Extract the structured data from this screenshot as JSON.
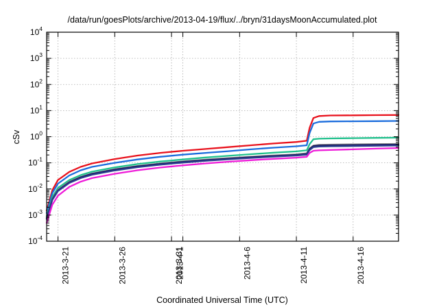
{
  "chart_data": {
    "type": "line",
    "title": "/data/run/goesPlots/archive/2013-04-19/flux/../bryn/31daysMoonAccumulated.plot",
    "xlabel": "Coordinated Universal Time (UTC)",
    "ylabel": "cSv",
    "xlim": [
      "2013-03-20",
      "2013-04-20"
    ],
    "ylim": [
      0.0001,
      10000
    ],
    "yscale": "log",
    "grid": true,
    "x_ticks": [
      "2013-3-21",
      "2013-3-26",
      "2013-3-31",
      "2013-4-1",
      "2013-4-6",
      "2013-4-11",
      "2013-4-16"
    ],
    "y_ticks": [
      {
        "value": 0.0001,
        "base": "10",
        "exp": "-4"
      },
      {
        "value": 0.001,
        "base": "10",
        "exp": "-3"
      },
      {
        "value": 0.01,
        "base": "10",
        "exp": "-2"
      },
      {
        "value": 0.1,
        "base": "10",
        "exp": "-1"
      },
      {
        "value": 1,
        "base": "10",
        "exp": "0"
      },
      {
        "value": 10,
        "base": "10",
        "exp": "1"
      },
      {
        "value": 100,
        "base": "10",
        "exp": "2"
      },
      {
        "value": 1000,
        "base": "10",
        "exp": "3"
      },
      {
        "value": 10000,
        "base": "10",
        "exp": "4"
      }
    ],
    "x": [
      "2013-03-20",
      "2013-03-20 12:00",
      "2013-03-21",
      "2013-03-22",
      "2013-03-23",
      "2013-03-24",
      "2013-03-26",
      "2013-03-28",
      "2013-03-30",
      "2013-04-01",
      "2013-04-03",
      "2013-04-05",
      "2013-04-07",
      "2013-04-09",
      "2013-04-11",
      "2013-04-11 22:00",
      "2013-04-12 04:00",
      "2013-04-12 12:00",
      "2013-04-13",
      "2013-04-14",
      "2013-04-16",
      "2013-04-18",
      "2013-04-20"
    ],
    "series": [
      {
        "color": "#e8111c",
        "values": [
          0.0015,
          0.009,
          0.022,
          0.045,
          0.07,
          0.095,
          0.14,
          0.19,
          0.24,
          0.29,
          0.34,
          0.4,
          0.47,
          0.55,
          0.63,
          0.7,
          2.2,
          5.2,
          6.2,
          6.5,
          6.6,
          6.7,
          6.8
        ]
      },
      {
        "color": "#1a6cdc",
        "values": [
          0.0012,
          0.007,
          0.016,
          0.033,
          0.052,
          0.07,
          0.1,
          0.135,
          0.17,
          0.205,
          0.24,
          0.28,
          0.33,
          0.38,
          0.43,
          0.47,
          1.4,
          3.2,
          3.7,
          3.85,
          3.9,
          3.95,
          4.0
        ]
      },
      {
        "color": "#1fc08c",
        "values": [
          0.0009,
          0.005,
          0.011,
          0.022,
          0.034,
          0.046,
          0.067,
          0.09,
          0.112,
          0.135,
          0.16,
          0.185,
          0.215,
          0.245,
          0.275,
          0.3,
          0.52,
          0.8,
          0.84,
          0.86,
          0.88,
          0.9,
          0.92
        ]
      },
      {
        "color": "#8a8a8a",
        "values": [
          0.0008,
          0.0042,
          0.0092,
          0.019,
          0.029,
          0.039,
          0.057,
          0.076,
          0.095,
          0.114,
          0.133,
          0.152,
          0.172,
          0.192,
          0.212,
          0.232,
          0.36,
          0.46,
          0.49,
          0.5,
          0.51,
          0.52,
          0.53
        ]
      },
      {
        "color": "#1b1b5e",
        "values": [
          0.00075,
          0.004,
          0.0088,
          0.018,
          0.028,
          0.038,
          0.055,
          0.073,
          0.091,
          0.109,
          0.127,
          0.145,
          0.164,
          0.183,
          0.202,
          0.22,
          0.34,
          0.44,
          0.46,
          0.47,
          0.48,
          0.49,
          0.5
        ]
      },
      {
        "color": "#2a3d8f",
        "values": [
          0.0007,
          0.0038,
          0.0083,
          0.017,
          0.026,
          0.035,
          0.051,
          0.068,
          0.085,
          0.102,
          0.119,
          0.136,
          0.154,
          0.172,
          0.19,
          0.206,
          0.31,
          0.4,
          0.42,
          0.43,
          0.44,
          0.45,
          0.46
        ]
      },
      {
        "color": "#ee1ad8",
        "values": [
          0.0005,
          0.0025,
          0.0055,
          0.012,
          0.019,
          0.026,
          0.038,
          0.052,
          0.066,
          0.08,
          0.095,
          0.11,
          0.126,
          0.142,
          0.158,
          0.17,
          0.24,
          0.29,
          0.3,
          0.31,
          0.33,
          0.35,
          0.37
        ]
      }
    ]
  }
}
